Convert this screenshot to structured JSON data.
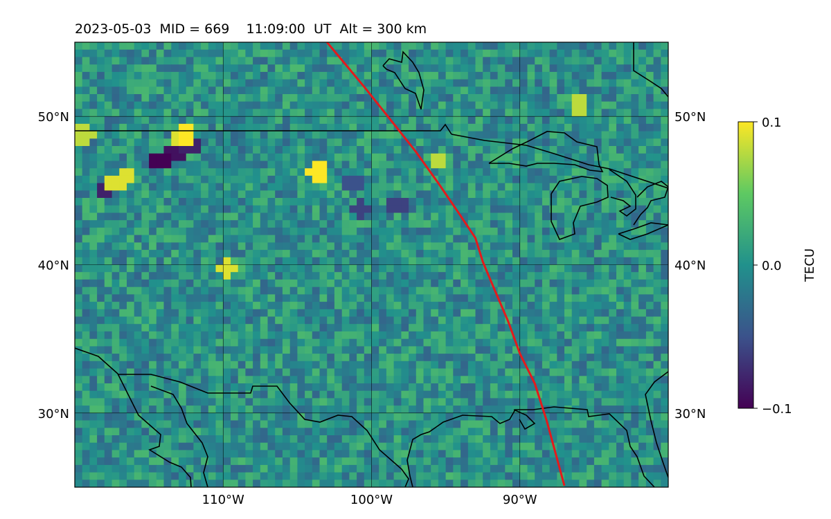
{
  "title": "2023-05-03  MID = 669    11:09:00  UT  Alt = 300 km",
  "chart_data": {
    "type": "heatmap",
    "title": "2023-05-03  MID = 669    11:09:00  UT  Alt = 300 km",
    "colormap": "viridis",
    "lon_range": [
      -120,
      -80
    ],
    "lat_range": [
      25,
      55
    ],
    "x_ticks": [
      {
        "value": -110,
        "label": "110°W"
      },
      {
        "value": -100,
        "label": "100°W"
      },
      {
        "value": -90,
        "label": "90°W"
      }
    ],
    "y_ticks": [
      {
        "value": 50,
        "label": "50°N"
      },
      {
        "value": 40,
        "label": "40°N"
      },
      {
        "value": 30,
        "label": "30°N"
      }
    ],
    "grid": true,
    "colorbar": {
      "label": "TECU",
      "range": [
        -0.1,
        0.1
      ],
      "ticks": [
        {
          "value": 0.1,
          "label": "0.1"
        },
        {
          "value": 0.0,
          "label": "0.0"
        },
        {
          "value": -0.1,
          "label": "−0.1"
        }
      ]
    },
    "terminator": {
      "color": "#e41a1c",
      "points": [
        [
          -103.0,
          55.0
        ],
        [
          -100.5,
          52.0
        ],
        [
          -98.5,
          49.5
        ],
        [
          -97.0,
          47.6
        ],
        [
          -95.5,
          45.5
        ],
        [
          -94.0,
          43.3
        ],
        [
          -93.0,
          41.8
        ],
        [
          -92.5,
          40.2
        ],
        [
          -91.7,
          38.3
        ],
        [
          -90.8,
          36.2
        ],
        [
          -90.0,
          34.0
        ],
        [
          -89.0,
          32.0
        ],
        [
          -88.2,
          29.5
        ],
        [
          -87.6,
          27.3
        ],
        [
          -87.0,
          25.1
        ]
      ]
    },
    "field": {
      "base": 0.0,
      "noise_amplitude": 0.035,
      "anomalies": [
        {
          "lon": -113.5,
          "lat": 47.8,
          "value": -0.09
        },
        {
          "lon": -114.5,
          "lat": 47.3,
          "value": -0.1
        },
        {
          "lon": -112.6,
          "lat": 48.3,
          "value": -0.08
        },
        {
          "lon": -118.2,
          "lat": 45.3,
          "value": -0.08
        },
        {
          "lon": -113.2,
          "lat": 48.8,
          "value": 0.09
        },
        {
          "lon": -112.8,
          "lat": 49.0,
          "value": 0.1
        },
        {
          "lon": -116.8,
          "lat": 46.3,
          "value": 0.09
        },
        {
          "lon": -117.5,
          "lat": 45.8,
          "value": 0.09
        },
        {
          "lon": -103.9,
          "lat": 46.5,
          "value": 0.1
        },
        {
          "lon": -119.6,
          "lat": 49.0,
          "value": 0.08
        },
        {
          "lon": -86.2,
          "lat": 51.0,
          "value": 0.08
        },
        {
          "lon": -110.0,
          "lat": 40.0,
          "value": 0.09
        },
        {
          "lon": -95.8,
          "lat": 47.2,
          "value": 0.08
        },
        {
          "lon": -98.5,
          "lat": 44.3,
          "value": -0.06
        },
        {
          "lon": -101.0,
          "lat": 44.0,
          "value": -0.06
        },
        {
          "lon": -101.5,
          "lat": 45.8,
          "value": -0.05
        }
      ]
    }
  }
}
